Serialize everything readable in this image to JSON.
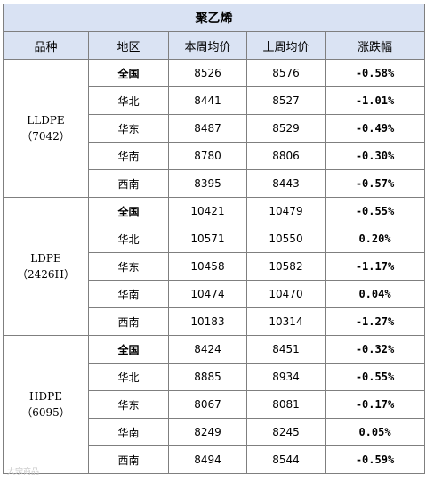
{
  "colors": {
    "title_bg": "#d9e2f3",
    "header_bg": "#dae3f3",
    "negative": "#00a050",
    "positive": "#e00000",
    "border": "#7f7f7f"
  },
  "table": {
    "title": "聚乙烯",
    "headers": [
      "品种",
      "地区",
      "本周均价",
      "上周均价",
      "涨跌幅"
    ],
    "groups": [
      {
        "product_line1": "LLDPE",
        "product_line2": "（7042）",
        "rows": [
          {
            "region": "全国",
            "this_week": "8526",
            "last_week": "8576",
            "change": "-0.58%"
          },
          {
            "region": "华北",
            "this_week": "8441",
            "last_week": "8527",
            "change": "-1.01%"
          },
          {
            "region": "华东",
            "this_week": "8487",
            "last_week": "8529",
            "change": "-0.49%"
          },
          {
            "region": "华南",
            "this_week": "8780",
            "last_week": "8806",
            "change": "-0.30%"
          },
          {
            "region": "西南",
            "this_week": "8395",
            "last_week": "8443",
            "change": "-0.57%"
          }
        ]
      },
      {
        "product_line1": "LDPE",
        "product_line2": "（2426H）",
        "rows": [
          {
            "region": "全国",
            "this_week": "10421",
            "last_week": "10479",
            "change": "-0.55%"
          },
          {
            "region": "华北",
            "this_week": "10571",
            "last_week": "10550",
            "change": "0.20%"
          },
          {
            "region": "华东",
            "this_week": "10458",
            "last_week": "10582",
            "change": "-1.17%"
          },
          {
            "region": "华南",
            "this_week": "10474",
            "last_week": "10470",
            "change": "0.04%"
          },
          {
            "region": "西南",
            "this_week": "10183",
            "last_week": "10314",
            "change": "-1.27%"
          }
        ]
      },
      {
        "product_line1": "HDPE",
        "product_line2": "（6095）",
        "rows": [
          {
            "region": "全国",
            "this_week": "8424",
            "last_week": "8451",
            "change": "-0.32%"
          },
          {
            "region": "华北",
            "this_week": "8885",
            "last_week": "8934",
            "change": "-0.55%"
          },
          {
            "region": "华东",
            "this_week": "8067",
            "last_week": "8081",
            "change": "-0.17%"
          },
          {
            "region": "华南",
            "this_week": "8249",
            "last_week": "8245",
            "change": "0.05%"
          },
          {
            "region": "西南",
            "this_week": "8494",
            "last_week": "8544",
            "change": "-0.59%"
          }
        ]
      }
    ]
  },
  "watermark": "大宗商品"
}
